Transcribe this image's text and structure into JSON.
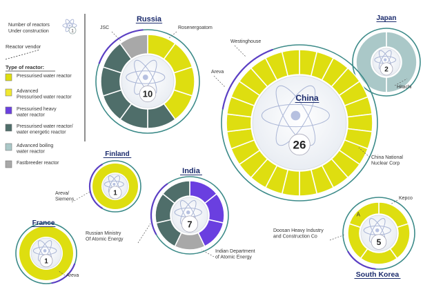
{
  "chart_data": {
    "type": "pie",
    "legend": {
      "under_construction_label": "Number of reactors\nUnder construction",
      "sample_count": "1",
      "vendor_label": "Reactor vendor",
      "type_heading": "Type of reactor:",
      "items": [
        {
          "label": "Pressurised water reactor",
          "color": "#dede10"
        },
        {
          "label": "Advanced\nPressurised water reactor",
          "color": "#f0e830"
        },
        {
          "label": "Pressurised heavy\nwater reactor",
          "color": "#6a3fe0"
        },
        {
          "label": "Pressurised water reactor/\nwater energetic reactor",
          "color": "#4f6e6a"
        },
        {
          "label": "Advanced boiling\nwater reactor",
          "color": "#aac8c8"
        },
        {
          "label": "Fastbreeder reactor",
          "color": "#a8a8a8"
        }
      ]
    },
    "countries": [
      {
        "name": "Russia",
        "total": 10,
        "segments": [
          {
            "type": "Pressurised water reactor",
            "count": 4,
            "color": "#dede10"
          },
          {
            "type": "Pressurised water reactor/water energetic reactor",
            "count": 5,
            "color": "#4f6e6a"
          },
          {
            "type": "Fastbreeder reactor",
            "count": 1,
            "color": "#a8a8a8"
          }
        ],
        "vendors": [
          "JSC",
          "Rosenergoatom"
        ]
      },
      {
        "name": "Japan",
        "total": 2,
        "segments": [
          {
            "type": "Advanced boiling water reactor",
            "count": 2,
            "color": "#aac8c8"
          }
        ],
        "vendors": [
          "Hitachi"
        ]
      },
      {
        "name": "China",
        "total": 26,
        "segments": [
          {
            "type": "Pressurised water reactor",
            "count": 26,
            "color": "#dede10"
          }
        ],
        "vendors": [
          "Westinghouse",
          "Areva",
          "China National\nNuclear Corp"
        ]
      },
      {
        "name": "Finland",
        "total": 1,
        "segments": [
          {
            "type": "Pressurised water reactor",
            "count": 1,
            "color": "#dede10"
          }
        ],
        "vendors": [
          "Areva/\nSiemens"
        ]
      },
      {
        "name": "India",
        "total": 7,
        "segments": [
          {
            "type": "Pressurised heavy water reactor",
            "count": 3,
            "color": "#6a3fe0"
          },
          {
            "type": "Fastbreeder reactor",
            "count": 1,
            "color": "#a8a8a8"
          },
          {
            "type": "Pressurised water reactor/water energetic reactor",
            "count": 3,
            "color": "#4f6e6a"
          }
        ],
        "vendors": [
          "Russian Ministry\nOf Atomic Energy",
          "Indian Department\nof Atomic Energy"
        ]
      },
      {
        "name": "France",
        "total": 1,
        "segments": [
          {
            "type": "Pressurised water reactor",
            "count": 1,
            "color": "#dede10"
          }
        ],
        "vendors": [
          "Areva"
        ]
      },
      {
        "name": "South Korea",
        "total": 5,
        "segments": [
          {
            "type": "Pressurised water reactor",
            "count": 5,
            "color": "#dede10"
          }
        ],
        "vendors": [
          "Kepco",
          "Doosan Heavy Industry\nand Construction Co"
        ],
        "annotations": [
          "A"
        ]
      }
    ]
  }
}
